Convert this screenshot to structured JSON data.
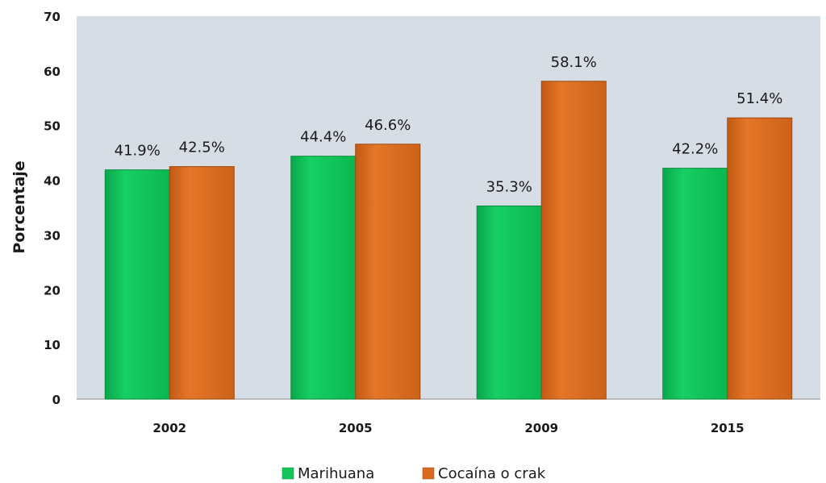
{
  "chart_data": {
    "type": "bar",
    "title": "",
    "xlabel": "",
    "ylabel": "Porcentaje",
    "ylim": [
      0,
      70
    ],
    "yticks": [
      0,
      10,
      20,
      30,
      40,
      50,
      60,
      70
    ],
    "categories": [
      "2002",
      "2005",
      "2009",
      "2015"
    ],
    "series": [
      {
        "name": "Marihuana",
        "color": "#12c65a",
        "values": [
          41.9,
          44.4,
          35.3,
          42.2
        ],
        "labels": [
          "41.9%",
          "44.4%",
          "35.3%",
          "42.2%"
        ]
      },
      {
        "name": "Cocaína o crak",
        "color": "#d9691f",
        "values": [
          42.5,
          46.6,
          58.1,
          51.4
        ],
        "labels": [
          "42.5%",
          "46.6%",
          "58.1%",
          "51.4%"
        ]
      }
    ],
    "grid": false,
    "plot_background": "#d7dde5",
    "legend_position": "bottom"
  }
}
